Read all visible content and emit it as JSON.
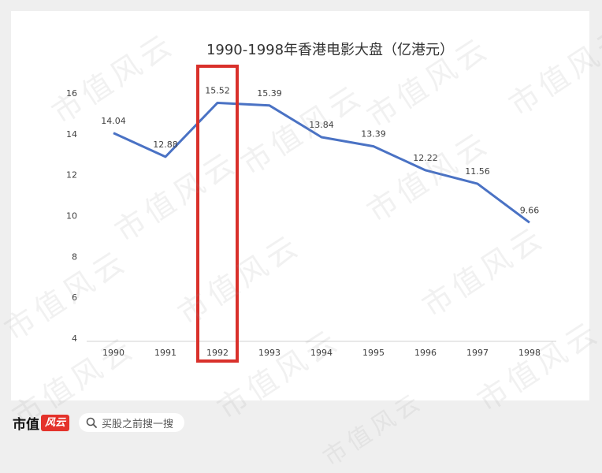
{
  "chart_data": {
    "type": "line",
    "title": "1990-1998年香港电影大盘（亿港元）",
    "x": [
      "1990",
      "1991",
      "1992",
      "1993",
      "1994",
      "1995",
      "1996",
      "1997",
      "1998"
    ],
    "series": [
      {
        "values": [
          14.04,
          12.88,
          15.52,
          15.39,
          13.84,
          13.39,
          12.22,
          11.56,
          9.66
        ]
      }
    ],
    "data_labels": [
      "14.04",
      "12.88",
      "15.52",
      "15.39",
      "13.84",
      "13.39",
      "12.22",
      "11.56",
      "9.66"
    ],
    "ylim": [
      4,
      16
    ],
    "yticks": [
      4,
      6,
      8,
      10,
      12,
      14,
      16
    ],
    "grid": false,
    "highlight_category": "1992",
    "colors": {
      "line": "#4a72c4",
      "highlight": "#d9302b",
      "axis": "#d0d0d0",
      "text": "#404040"
    }
  },
  "watermark": {
    "text": "市值风云"
  },
  "footer": {
    "brand": "市值",
    "brand_logo": "风云",
    "search_icon": "search-icon",
    "search_text": "买股之前搜一搜"
  }
}
